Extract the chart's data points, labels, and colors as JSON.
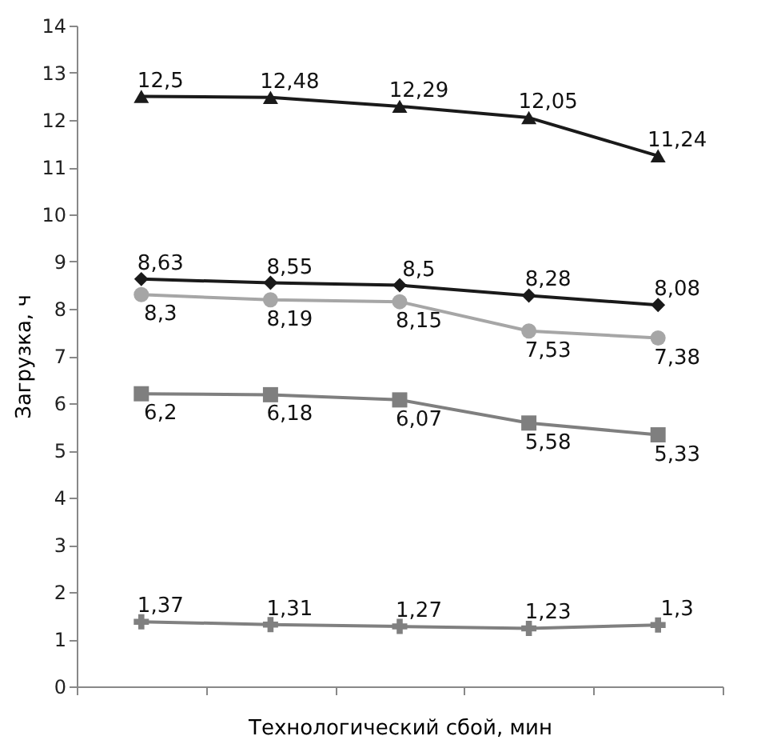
{
  "chart_data": {
    "type": "line",
    "xlabel": "Технологический сбой, мин",
    "ylabel": "Загрузка, ч",
    "categories": [
      null,
      null,
      null,
      null,
      null
    ],
    "ylim": [
      0,
      14
    ],
    "yticks": [
      0,
      1,
      2,
      3,
      4,
      5,
      6,
      7,
      8,
      9,
      10,
      11,
      12,
      13,
      14
    ],
    "grid": false,
    "tick_labels": "y",
    "series": [
      {
        "color": "#1a1a1a",
        "marker": "triangle",
        "values": [
          12.5,
          12.48,
          12.29,
          12.05,
          11.24
        ],
        "value_labels": [
          "12,5",
          "12,48",
          "12,29",
          "12,05",
          "11,24"
        ]
      },
      {
        "color": "#1a1a1a",
        "marker": "diamond",
        "values": [
          8.63,
          8.55,
          8.5,
          8.28,
          8.08
        ],
        "value_labels": [
          "8,63",
          "8,55",
          "8,5",
          "8,28",
          "8,08"
        ]
      },
      {
        "color": "#a6a6a6",
        "marker": "circle",
        "values": [
          8.3,
          8.19,
          8.15,
          7.53,
          7.38
        ],
        "value_labels": [
          "8,3",
          "8,19",
          "8,15",
          "7,53",
          "7,38"
        ]
      },
      {
        "color": "#7f7f7f",
        "marker": "square",
        "values": [
          6.2,
          6.18,
          6.07,
          5.58,
          5.33
        ],
        "value_labels": [
          "6,2",
          "6,18",
          "6,07",
          "5,58",
          "5,33"
        ]
      },
      {
        "color": "#808080",
        "marker": "cross",
        "values": [
          1.37,
          1.31,
          1.27,
          1.23,
          1.3
        ],
        "value_labels": [
          "1,37",
          "1,31",
          "1,27",
          "1,23",
          "1,3"
        ]
      }
    ]
  }
}
